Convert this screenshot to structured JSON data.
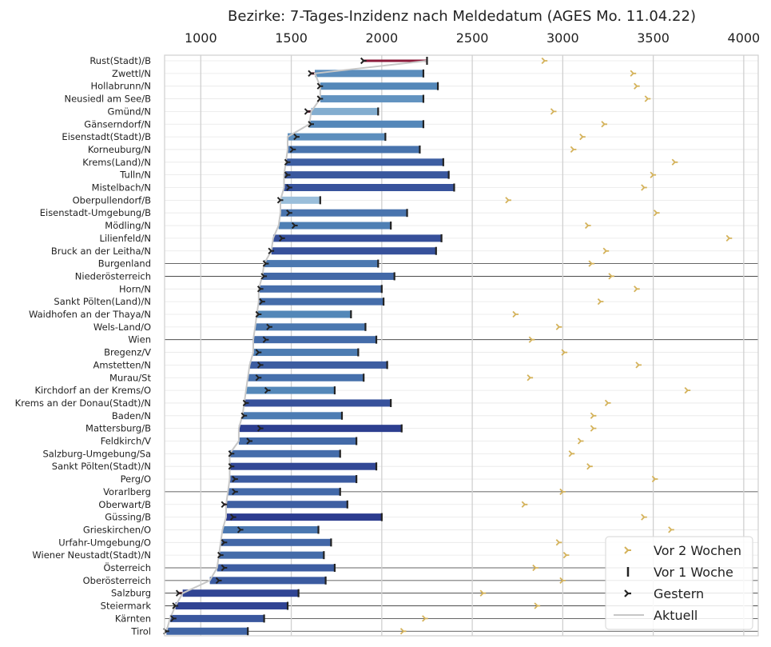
{
  "chart_data": {
    "type": "bar",
    "orientation": "horizontal",
    "title": "Bezirke: 7-Tages-Inzidenz nach Meldedatum (AGES Mo. 11.04.22)",
    "xlabel": "",
    "ylabel": "",
    "xlim": [
      800,
      4080
    ],
    "xticks": [
      1000,
      1500,
      2000,
      2500,
      3000,
      3500,
      4000
    ],
    "grid": true,
    "legend_position": "bottom-right",
    "legend": [
      {
        "name": "Vor 2 Wochen",
        "marker": "tri-right",
        "color": "#d4b25a"
      },
      {
        "name": "Vor 1 Woche",
        "marker": "vline",
        "color": "#222222"
      },
      {
        "name": "Gestern",
        "marker": "tri-right",
        "color": "#222222"
      },
      {
        "name": "Aktuell",
        "marker": "line",
        "color": "#c7c7c7"
      }
    ],
    "colors": {
      "bar_dark": "#27338a",
      "bar_light": "#c6e1ef",
      "rise": "#8b1a3a",
      "rise_bar": "#eef5da",
      "marker_two_weeks": "#d4b25a",
      "marker_dark": "#222222",
      "line_current": "#c7c7c7"
    },
    "categories": [
      "Rust(Stadt)/B",
      "Zwettl/N",
      "Hollabrunn/N",
      "Neusiedl am See/B",
      "Gmünd/N",
      "Gänserndorf/N",
      "Eisenstadt(Stadt)/B",
      "Korneuburg/N",
      "Krems(Land)/N",
      "Tulln/N",
      "Mistelbach/N",
      "Oberpullendorf/B",
      "Eisenstadt-Umgebung/B",
      "Mödling/N",
      "Lilienfeld/N",
      "Bruck an der Leitha/N",
      "Burgenland",
      "Niederösterreich",
      "Horn/N",
      "Sankt Pölten(Land)/N",
      "Waidhofen an der Thaya/N",
      "Wels-Land/O",
      "Wien",
      "Bregenz/V",
      "Amstetten/N",
      "Murau/St",
      "Kirchdorf an der Krems/O",
      "Krems an der Donau(Stadt)/N",
      "Baden/N",
      "Mattersburg/B",
      "Feldkirch/V",
      "Salzburg-Umgebung/Sa",
      "Sankt Pölten(Stadt)/N",
      "Perg/O",
      "Vorarlberg",
      "Oberwart/B",
      "Güssing/B",
      "Grieskirchen/O",
      "Urfahr-Umgebung/O",
      "Wiener Neustadt(Stadt)/N",
      "Österreich",
      "Oberösterreich",
      "Salzburg",
      "Steiermark",
      "Kärnten",
      "Tirol"
    ],
    "summary_rows": [
      "Burgenland",
      "Niederösterreich",
      "Wien",
      "Vorarlberg",
      "Österreich",
      "Oberösterreich",
      "Salzburg",
      "Steiermark",
      "Kärnten",
      "Tirol"
    ],
    "series": [
      {
        "name": "Aktuell",
        "values": [
          2250,
          1630,
          1660,
          1660,
          1610,
          1600,
          1480,
          1480,
          1470,
          1460,
          1460,
          1440,
          1440,
          1430,
          1400,
          1390,
          1350,
          1340,
          1320,
          1320,
          1310,
          1300,
          1290,
          1290,
          1270,
          1260,
          1250,
          1240,
          1230,
          1210,
          1210,
          1160,
          1160,
          1160,
          1150,
          1140,
          1140,
          1120,
          1110,
          1100,
          1090,
          1050,
          900,
          860,
          830,
          810
        ]
      },
      {
        "name": "Vor 1 Woche",
        "values": [
          2250,
          2230,
          2310,
          2230,
          1980,
          2230,
          2020,
          2210,
          2340,
          2370,
          2400,
          1660,
          2140,
          2050,
          2330,
          2300,
          1980,
          2070,
          2000,
          2010,
          1830,
          1910,
          1970,
          1870,
          2030,
          1900,
          1740,
          2050,
          1780,
          2110,
          1860,
          1770,
          1970,
          1860,
          1770,
          1810,
          2000,
          1650,
          1720,
          1680,
          1740,
          1690,
          1540,
          1480,
          1350,
          1260
        ]
      },
      {
        "name": "Gestern",
        "values": [
          1900,
          1610,
          1660,
          1660,
          1590,
          1610,
          1530,
          1510,
          1480,
          1480,
          1490,
          1440,
          1490,
          1520,
          1450,
          1390,
          1360,
          1350,
          1330,
          1340,
          1320,
          1380,
          1360,
          1320,
          1330,
          1320,
          1370,
          1250,
          1240,
          1330,
          1270,
          1170,
          1170,
          1190,
          1190,
          1130,
          1180,
          1220,
          1130,
          1110,
          1130,
          1100,
          880,
          860,
          850,
          810
        ]
      },
      {
        "name": "Vor 2 Wochen",
        "values": [
          2900,
          3390,
          3410,
          3470,
          2950,
          3230,
          3110,
          3060,
          3620,
          3500,
          3450,
          2700,
          3520,
          3140,
          3920,
          3240,
          3160,
          3270,
          3410,
          3210,
          2740,
          2980,
          2830,
          3010,
          3420,
          2820,
          3690,
          3250,
          3170,
          3170,
          3100,
          3050,
          3150,
          3510,
          3000,
          2790,
          3450,
          3600,
          2980,
          3020,
          2850,
          3000,
          2560,
          2860,
          2240,
          2120
        ]
      }
    ]
  }
}
